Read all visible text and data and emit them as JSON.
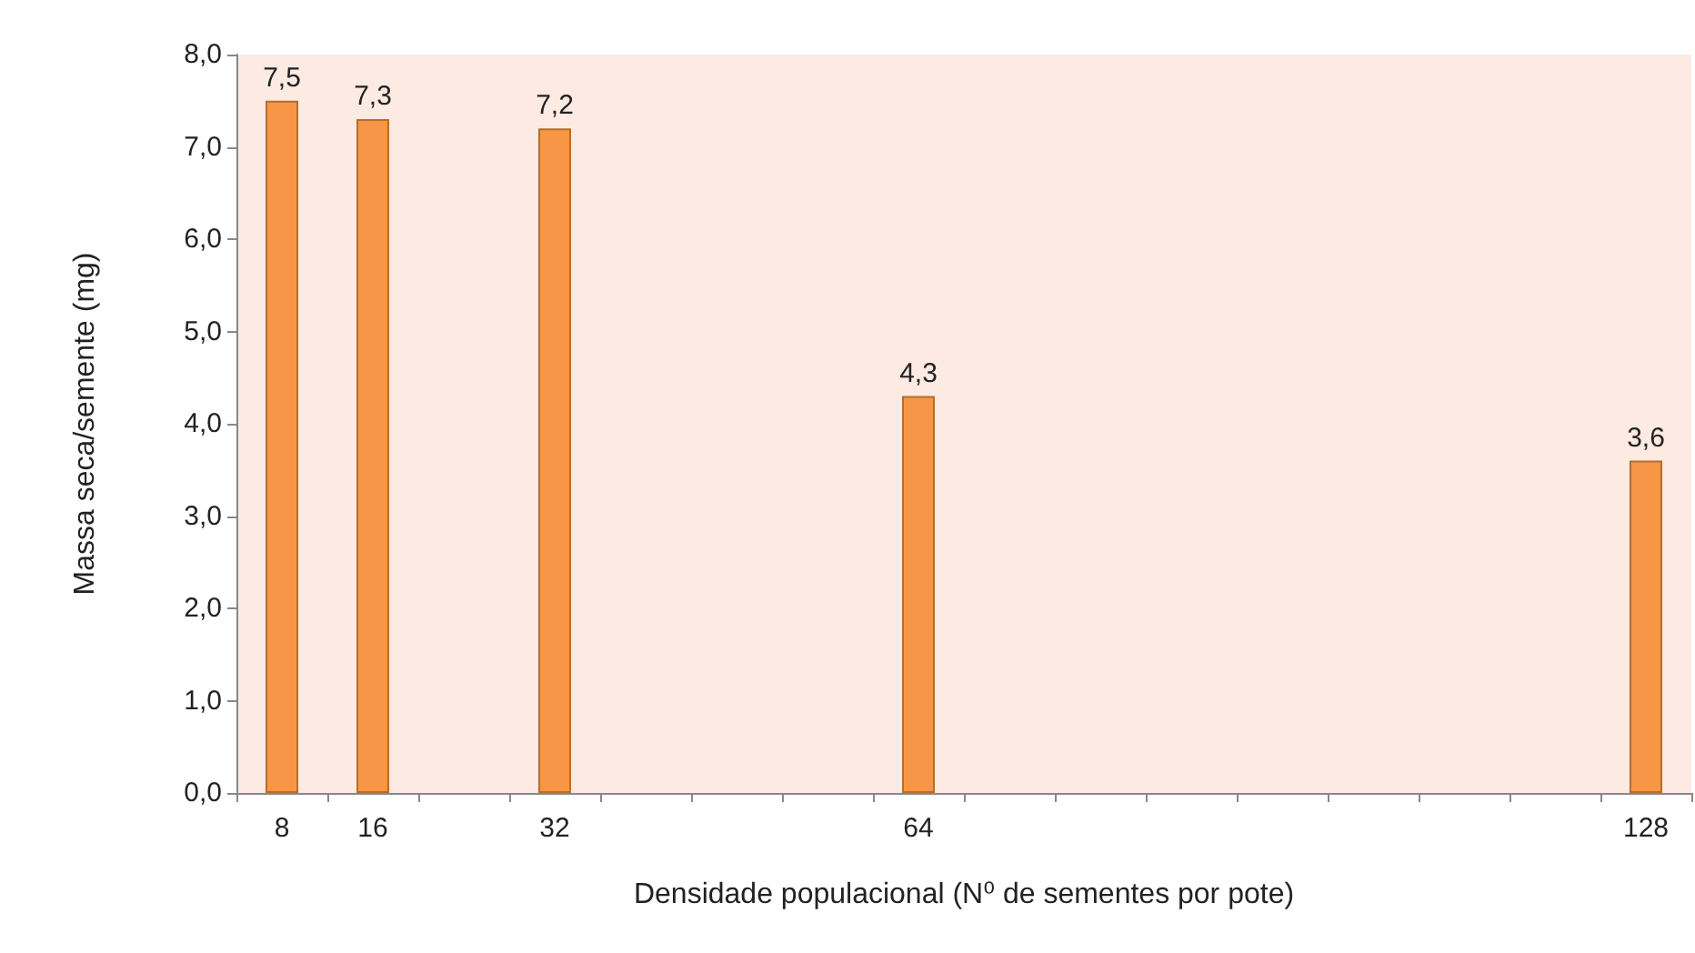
{
  "chart_data": {
    "type": "bar",
    "xlabel": "Densidade populacional (N⁰ de sementes por pote)",
    "ylabel": "Massa seca/semente (mg)",
    "categories": [
      "8",
      "16",
      null,
      "32",
      null,
      null,
      null,
      "64",
      null,
      null,
      null,
      null,
      null,
      null,
      null,
      "128"
    ],
    "values": [
      7.5,
      7.3,
      null,
      7.2,
      null,
      null,
      null,
      4.3,
      null,
      null,
      null,
      null,
      null,
      null,
      null,
      3.6
    ],
    "value_labels": [
      "7,5",
      "7,3",
      null,
      "7,2",
      null,
      null,
      null,
      "4,3",
      null,
      null,
      null,
      null,
      null,
      null,
      null,
      "3,6"
    ],
    "color": "#f79646",
    "ylim": [
      0,
      8
    ],
    "yticks": [
      {
        "value": 0,
        "label": "0,0"
      },
      {
        "value": 1,
        "label": "1,0"
      },
      {
        "value": 2,
        "label": "2,0"
      },
      {
        "value": 3,
        "label": "3,0"
      },
      {
        "value": 4,
        "label": "4,0"
      },
      {
        "value": 5,
        "label": "5,0"
      },
      {
        "value": 6,
        "label": "6,0"
      },
      {
        "value": 7,
        "label": "7,0"
      },
      {
        "value": 8,
        "label": "8,0"
      }
    ],
    "grid": false
  }
}
